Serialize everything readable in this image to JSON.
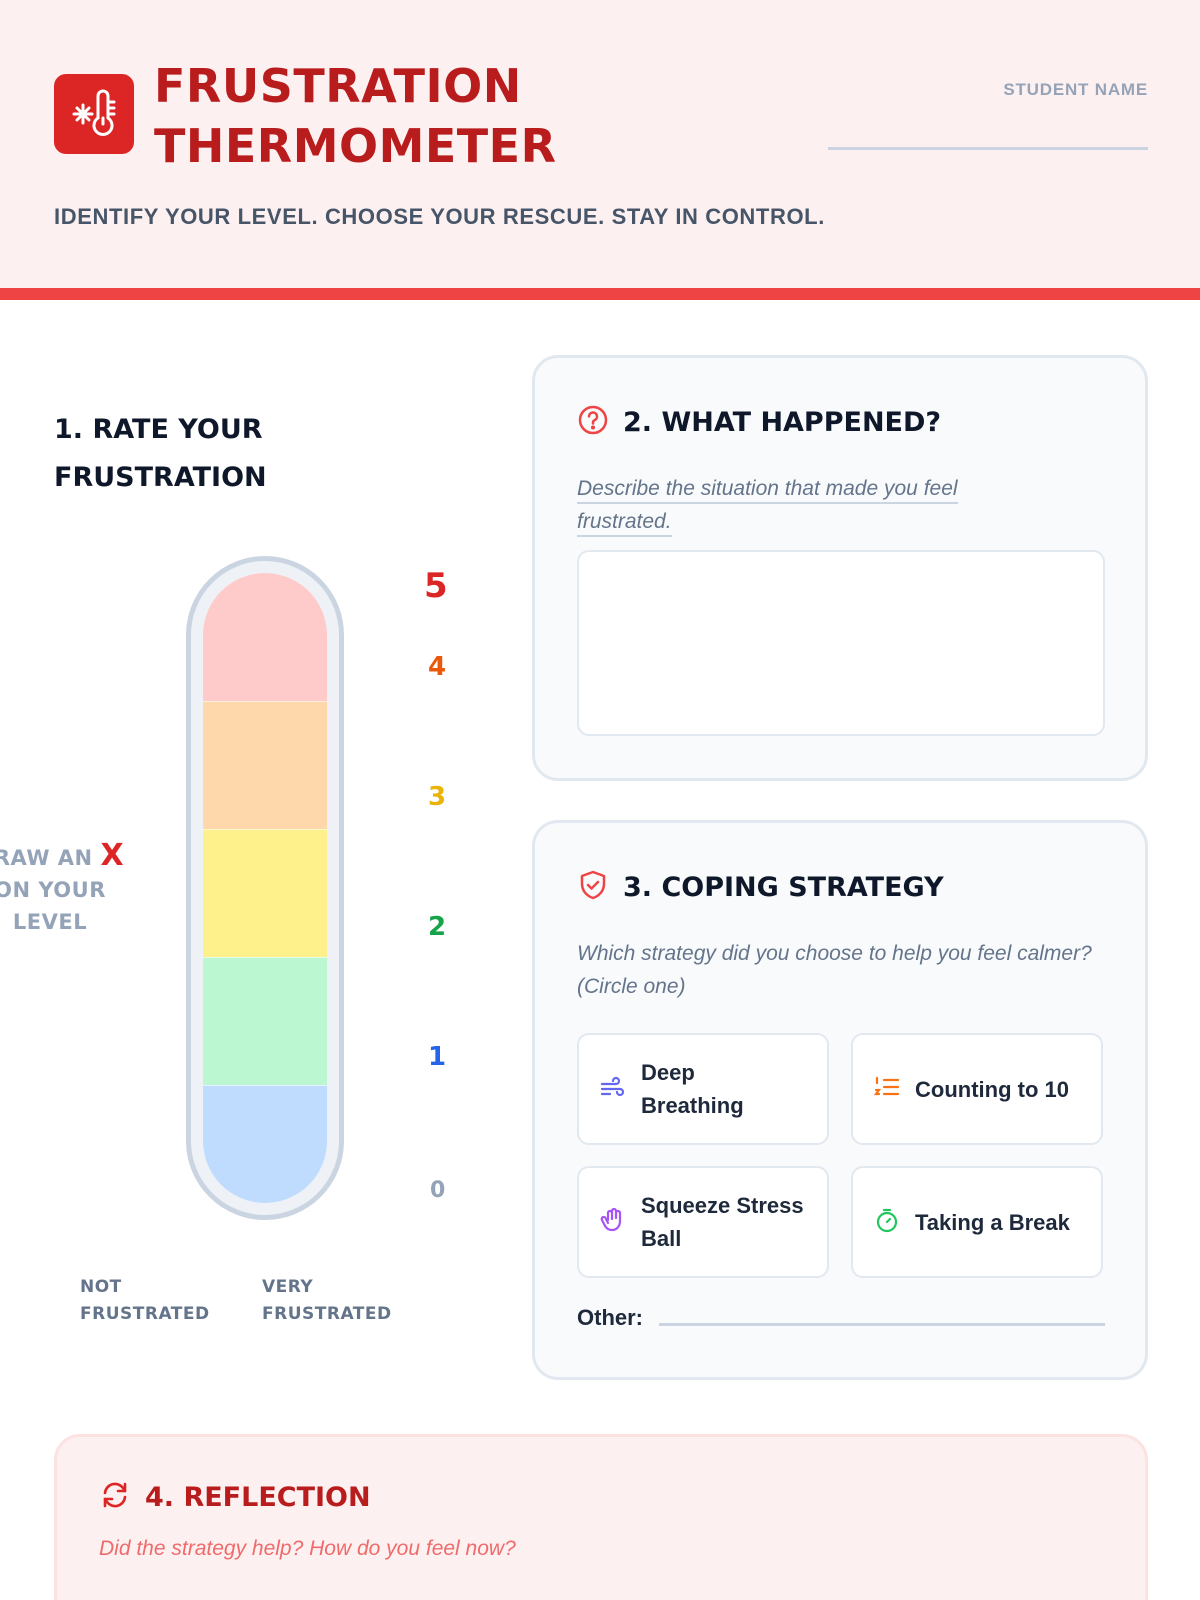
{
  "header": {
    "title_line1": "FRUSTRATION",
    "title_line2": "THERMOMETER",
    "subtitle": "IDENTIFY YOUR LEVEL. CHOOSE YOUR RESCUE. STAY IN CONTROL.",
    "student_name_label": "STUDENT NAME",
    "logo_icon": "thermometer-snowflake-icon",
    "accent": "#dc2626",
    "bar_color": "#ef4444"
  },
  "section1": {
    "title": "1. RATE YOUR FRUSTRATION",
    "levels": [
      {
        "label": "5",
        "color": "#dc2626",
        "fill": "#fecaca"
      },
      {
        "label": "4",
        "color": "#ea580c",
        "fill": "#fed7aa"
      },
      {
        "label": "3",
        "color": "#eab308",
        "fill": "#fef08a"
      },
      {
        "label": "2",
        "color": "#16a34a",
        "fill": "#bbf7d0"
      },
      {
        "label": "1",
        "color": "#2563eb",
        "fill": "#bfdbfe"
      },
      {
        "label": "0",
        "color": "#94a3b8",
        "fill": ""
      }
    ],
    "draw_hint_line1": "DRAW AN",
    "draw_hint_mark": "X",
    "draw_hint_line2": "ON YOUR",
    "draw_hint_line3": "LEVEL",
    "low_label": "NOT FRUSTRATED",
    "high_label": "VERY FRUSTRATED"
  },
  "section2": {
    "title": "2. WHAT HAPPENED?",
    "icon": "question-circle-icon",
    "prompt_line1": "Describe the situation that made you feel",
    "prompt_line2": "frustrated."
  },
  "section3": {
    "title": "3. COPING STRATEGY",
    "icon": "shield-check-icon",
    "prompt": "Which strategy did you choose to help you feel calmer? (Circle one)",
    "options": [
      {
        "label": "Deep Breathing",
        "icon": "wind-icon",
        "color": "#6366f1"
      },
      {
        "label": "Counting to 10",
        "icon": "numbered-list-icon",
        "color": "#f97316"
      },
      {
        "label": "Squeeze Stress Ball",
        "icon": "hand-icon",
        "color": "#a855f7"
      },
      {
        "label": "Taking a Break",
        "icon": "timer-icon",
        "color": "#22c55e"
      }
    ],
    "other_label": "Other:"
  },
  "section4": {
    "title": "4. REFLECTION",
    "icon": "refresh-icon",
    "prompt": "Did the strategy help? How do you feel now?"
  }
}
